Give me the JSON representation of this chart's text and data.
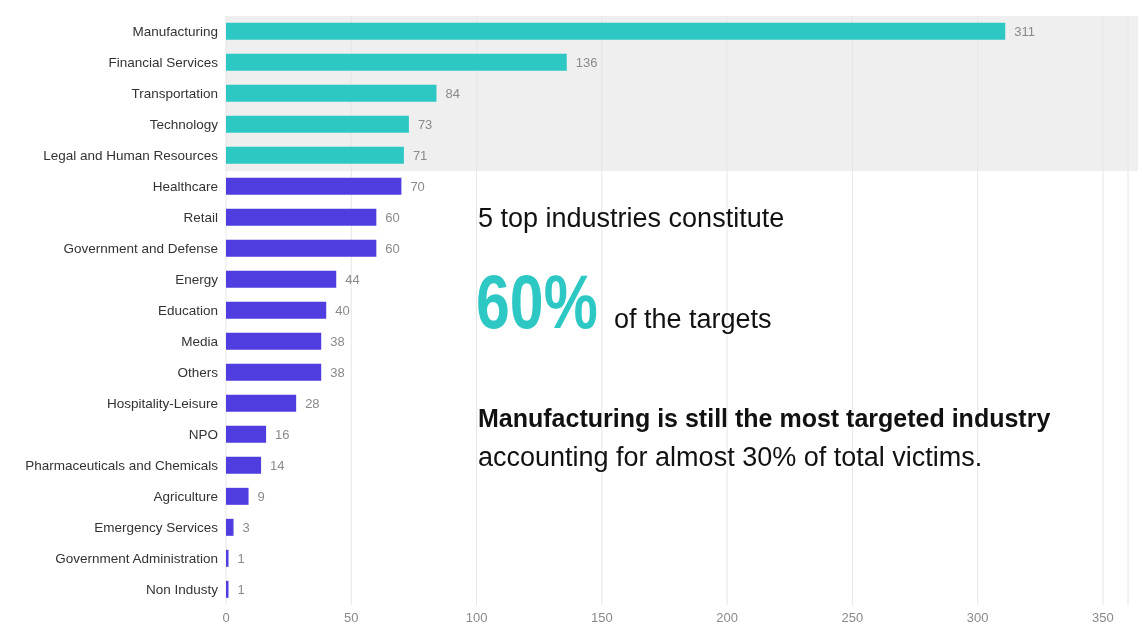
{
  "chart_data": {
    "type": "bar",
    "orientation": "horizontal",
    "categories": [
      "Manufacturing",
      "Financial Services",
      "Transportation",
      "Technology",
      "Legal and Human Resources",
      "Healthcare",
      "Retail",
      "Government and Defense",
      "Energy",
      "Education",
      "Media",
      "Others",
      "Hospitality-Leisure",
      "NPO",
      "Pharmaceuticals and Chemicals",
      "Agriculture",
      "Emergency Services",
      "Government Administration",
      "Non Industy"
    ],
    "values": [
      311,
      136,
      84,
      73,
      71,
      70,
      60,
      60,
      44,
      40,
      38,
      38,
      28,
      16,
      14,
      9,
      3,
      1,
      1
    ],
    "colors": [
      "#2ec8c4",
      "#2ec8c4",
      "#2ec8c4",
      "#2ec8c4",
      "#2ec8c4",
      "#4f3de0",
      "#4f3de0",
      "#4f3de0",
      "#4f3de0",
      "#4f3de0",
      "#4f3de0",
      "#4f3de0",
      "#4f3de0",
      "#4f3de0",
      "#4f3de0",
      "#4f3de0",
      "#4f3de0",
      "#4f3de0",
      "#4f3de0"
    ],
    "xlim": [
      0,
      360
    ],
    "xticks": [
      0,
      50,
      100,
      150,
      200,
      250,
      300,
      350
    ],
    "grid": "x",
    "data_labels": true,
    "bands": [
      {
        "axis": "y",
        "from": "Manufacturing",
        "to": "Legal and Human Resources",
        "color": "#efefef"
      }
    ],
    "annotations": [
      "5 top industries constitute",
      "60%",
      "of the targets",
      "Manufacturing is still the most targeted industry",
      "accounting for almost 30% of total victims."
    ]
  }
}
